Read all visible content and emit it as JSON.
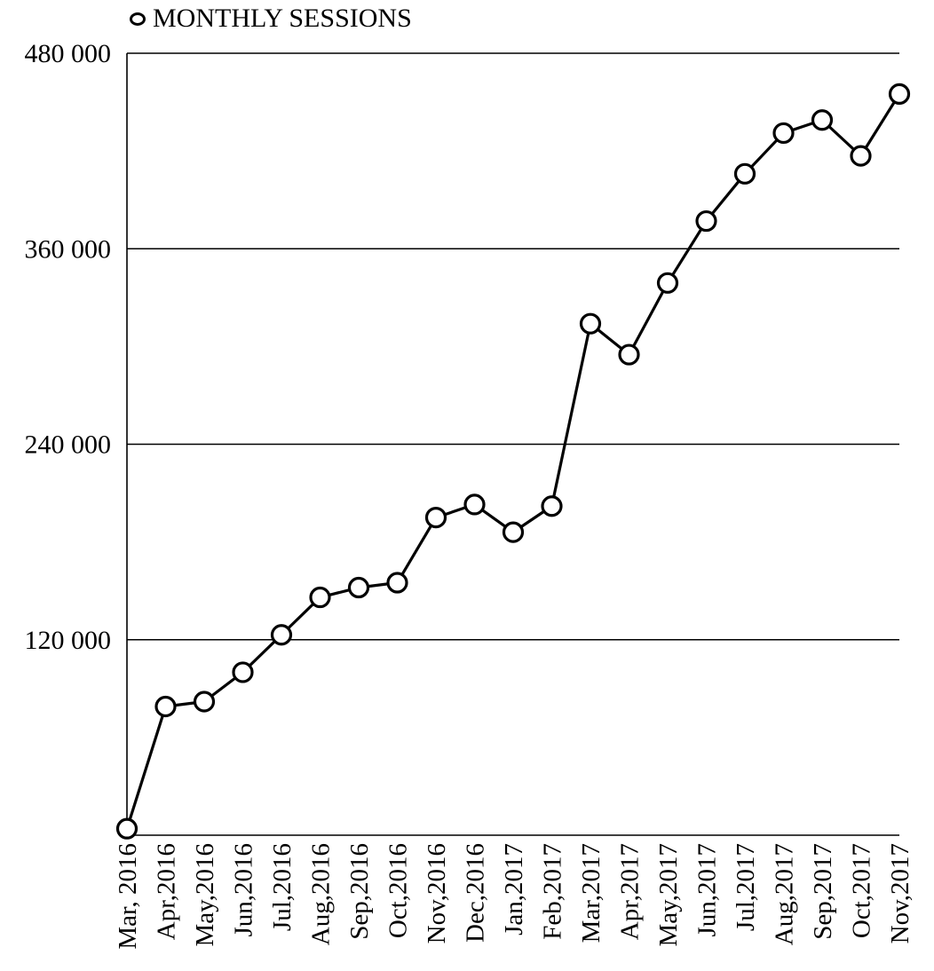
{
  "chart_data": {
    "type": "line",
    "title": "",
    "xlabel": "",
    "ylabel": "",
    "legend": {
      "position": "top-left",
      "entries": [
        "MONTHLY SESSIONS"
      ]
    },
    "grid": {
      "horizontal": true,
      "vertical": false
    },
    "ylim": [
      0,
      480000
    ],
    "yticks": [
      120000,
      240000,
      360000,
      480000
    ],
    "ytick_labels": [
      "120 000",
      "240 000",
      "360 000",
      "480 000"
    ],
    "categories": [
      "Mar, 2016",
      "Apr,2016",
      "May,2016",
      "Jun,2016",
      "Jul,2016",
      "Aug,2016",
      "Sep,2016",
      "Oct,2016",
      "Nov,2016",
      "Dec,2016",
      "Jan,2017",
      "Feb,2017",
      "Mar,2017",
      "Apr,2017",
      "May,2017",
      "Jun,2017",
      "Jul,2017",
      "Aug,2017",
      "Sep,2017",
      "Oct,2017",
      "Nov,2017"
    ],
    "series": [
      {
        "name": "MONTHLY SESSIONS",
        "color": "#000000",
        "marker": "hollow-circle",
        "values": [
          4000,
          79000,
          82000,
          100000,
          123000,
          146000,
          152000,
          155000,
          195000,
          203000,
          186000,
          202000,
          314000,
          295000,
          339000,
          377000,
          406000,
          431000,
          439000,
          417000,
          455000
        ]
      }
    ]
  }
}
